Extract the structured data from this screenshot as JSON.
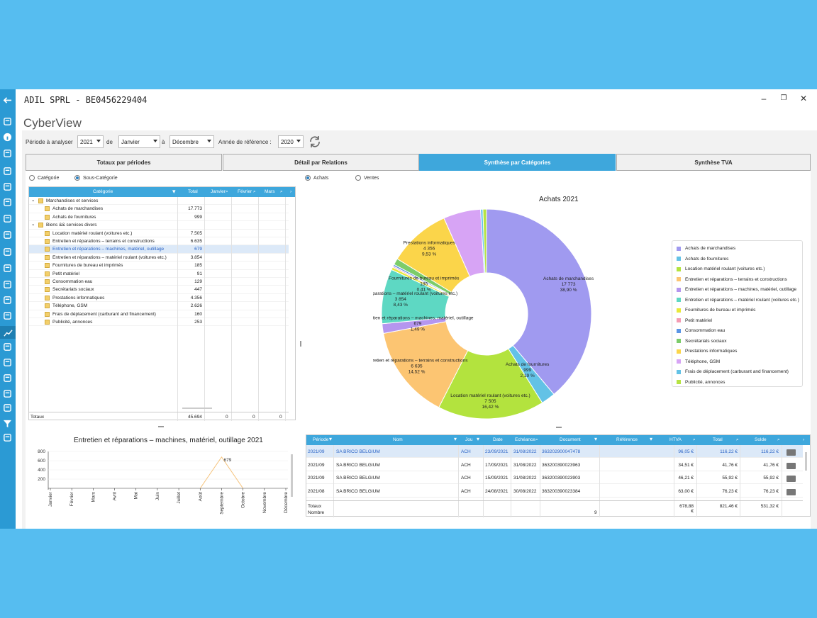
{
  "window": {
    "title": "ADIL SPRL  -  BE0456229404",
    "minimize": "–",
    "maximize": "❐",
    "close": "✕"
  },
  "app": {
    "title": "CyberView"
  },
  "toolbar": {
    "period_label": "Période à analyser",
    "year": "2021",
    "de_label": "de",
    "month_from": "Janvier",
    "a_label": "à",
    "month_to": "Décembre",
    "ref_year_label": "Année de référence :",
    "ref_year": "2020"
  },
  "tabs": [
    {
      "label": "Totaux par périodes"
    },
    {
      "label": "Détail par Relations"
    },
    {
      "label": "Synthèse par Catégories"
    },
    {
      "label": "Synthèse TVA"
    }
  ],
  "radios": {
    "categorie": "Catégorie",
    "sous_categorie": "Sous-Catégorie",
    "achats": "Achats",
    "ventes": "Ventes"
  },
  "grid": {
    "headers": [
      "Catégorie",
      "Total",
      "Janvier",
      "Février",
      "Mars"
    ],
    "groups": [
      {
        "label": "Marchandises et services",
        "rows": [
          {
            "label": "Achats de marchandises",
            "total": "17.773"
          },
          {
            "label": "Achats de fournitures",
            "total": "999"
          }
        ]
      },
      {
        "label": "Biens && services divers",
        "rows": [
          {
            "label": "Location matériel roulant (voitures etc.)",
            "total": "7.505"
          },
          {
            "label": "Entretien et réparations – terrains et constructions",
            "total": "6.635"
          },
          {
            "label": "Entretien et réparations – machines, matériel, outillage",
            "total": "679"
          },
          {
            "label": "Entretien et réparations – matériel roulant (voitures etc.)",
            "total": "3.854"
          },
          {
            "label": "Fournitures de bureau et imprimés",
            "total": "185"
          },
          {
            "label": "Petit matériel",
            "total": "91"
          },
          {
            "label": "Consommation eau",
            "total": "129"
          },
          {
            "label": "Secrétariats sociaux",
            "total": "447"
          },
          {
            "label": "Prestations informatiques",
            "total": "4.356"
          },
          {
            "label": "Téléphone, GSM",
            "total": "2.626"
          },
          {
            "label": "Frais de déplacement (carburant and financement)",
            "total": "160"
          },
          {
            "label": "Publicité, annonces",
            "total": "253"
          }
        ]
      }
    ],
    "totals": {
      "label": "Totaux",
      "total": "45.694",
      "janvier": "0",
      "fevrier": "0",
      "mars": "0"
    }
  },
  "chart_data": [
    {
      "type": "pie",
      "title": "Achats 2021",
      "donut": true,
      "slices": [
        {
          "label": "Achats de marchandises",
          "value": 17773,
          "value_text": "17 773",
          "pct": "38,90 %",
          "color": "#a09af0"
        },
        {
          "label": "Achats de fournitures",
          "value": 999,
          "value_text": "999",
          "pct": "2,19 %",
          "color": "#63c2e6"
        },
        {
          "label": "Location matériel roulant (voitures etc.)",
          "value": 7505,
          "value_text": "7 505",
          "pct": "16,42 %",
          "color": "#b3e33e"
        },
        {
          "label": "Entretien et réparations – terrains et constructions",
          "value": 6635,
          "value_text": "6 635",
          "pct": "14,52 %",
          "color": "#fcc572"
        },
        {
          "label": "Entretien et réparations – machines, matériel, outillage",
          "value": 679,
          "value_text": "679",
          "pct": "1,49 %",
          "color": "#b596ef"
        },
        {
          "label": "Entretien et réparations – matériel roulant (voitures etc.)",
          "value": 3854,
          "value_text": "3 854",
          "pct": "8,43 %",
          "color": "#5ed8c3"
        },
        {
          "label": "Fournitures de bureau et imprimés",
          "value": 185,
          "value_text": "185",
          "pct": "0,41 %",
          "color": "#e8e83a"
        },
        {
          "label": "Petit matériel",
          "value": 91,
          "value_text": "",
          "pct": "",
          "color": "#f59bb3"
        },
        {
          "label": "Consommation eau",
          "value": 129,
          "value_text": "",
          "pct": "",
          "color": "#5a95e6"
        },
        {
          "label": "Secrétariats sociaux",
          "value": 447,
          "value_text": "",
          "pct": "",
          "color": "#7ccc6a"
        },
        {
          "label": "Prestations informatiques",
          "value": 4356,
          "value_text": "4 356",
          "pct": "9,53 %",
          "color": "#fbd54a"
        },
        {
          "label": "Téléphone, GSM",
          "value": 2626,
          "value_text": "",
          "pct": "",
          "color": "#d7a4f5"
        },
        {
          "label": "Frais de déplacement (carburant and financement)",
          "value": 160,
          "value_text": "",
          "pct": "",
          "color": "#63c2e6"
        },
        {
          "label": "Publicité, annonces",
          "value": 253,
          "value_text": "",
          "pct": "",
          "color": "#b6e342"
        }
      ]
    },
    {
      "type": "line",
      "title": "Entretien et réparations – machines, matériel, outillage 2021",
      "categories": [
        "Janvier",
        "Février",
        "Mars",
        "Avril",
        "Mai",
        "Juin",
        "Juillet",
        "Août",
        "Septembre",
        "Octobre",
        "Novembre",
        "Décembre"
      ],
      "values": [
        0,
        0,
        0,
        0,
        0,
        0,
        0,
        0,
        679,
        0,
        0,
        0
      ],
      "yticks": [
        "800",
        "600",
        "400",
        "200"
      ],
      "ylim": [
        0,
        800
      ],
      "point_label": "679",
      "color": "#f5c27a"
    }
  ],
  "legend": [
    "Achats de marchandises",
    "Achats de fournitures",
    "Location matériel roulant (voitures etc.)",
    "Entretien et réparations – terrains et constructions",
    "Entretien et réparations – machines, matériel, outillage",
    "Entretien et réparations – matériel roulant (voitures etc.)",
    "Fournitures de bureau et imprimés",
    "Petit matériel",
    "Consommation eau",
    "Secrétariats sociaux",
    "Prestations informatiques",
    "Téléphone, GSM",
    "Frais de déplacement (carburant and financement)",
    "Publicité, annonces"
  ],
  "legend_colors": [
    "#a09af0",
    "#63c2e6",
    "#b3e33e",
    "#fcc572",
    "#b596ef",
    "#5ed8c3",
    "#e8e83a",
    "#f59bb3",
    "#5a95e6",
    "#7ccc6a",
    "#fbd54a",
    "#d7a4f5",
    "#63c2e6",
    "#b6e342"
  ],
  "table": {
    "headers": [
      "Période",
      "Nom",
      "Jou",
      "Date",
      "Echéance",
      "Document",
      "Référence",
      "HTVA",
      "Total",
      "Solde"
    ],
    "rows": [
      {
        "periode": "2021/09",
        "nom": "SA BRICO BELGIUM",
        "jou": "ACH",
        "date": "23/09/2021",
        "echeance": "31/08/2022",
        "document": "363202900047478",
        "htva": "96,05 €",
        "total": "116,22 €",
        "solde": "116,22 €"
      },
      {
        "periode": "2021/09",
        "nom": "SA BRICO BELGIUM",
        "jou": "ACH",
        "date": "17/09/2021",
        "echeance": "31/08/2022",
        "document": "363200390023963",
        "htva": "34,51 €",
        "total": "41,76 €",
        "solde": "41,76 €"
      },
      {
        "periode": "2021/09",
        "nom": "SA BRICO BELGIUM",
        "jou": "ACH",
        "date": "15/09/2021",
        "echeance": "31/08/2022",
        "document": "363200390023903",
        "htva": "46,21 €",
        "total": "55,92 €",
        "solde": "55,92 €"
      },
      {
        "periode": "2021/08",
        "nom": "SA BRICO BELGIUM",
        "jou": "ACH",
        "date": "24/08/2021",
        "echeance": "30/08/2022",
        "document": "363200390023384",
        "htva": "63,00 €",
        "total": "76,23 €",
        "solde": "76,23 €"
      }
    ],
    "totals": {
      "label": "Totaux",
      "nombre_label": "Nombre",
      "nombre": "9",
      "htva": "678,88 €",
      "total": "821,46 €",
      "solde": "531,32 €"
    }
  }
}
